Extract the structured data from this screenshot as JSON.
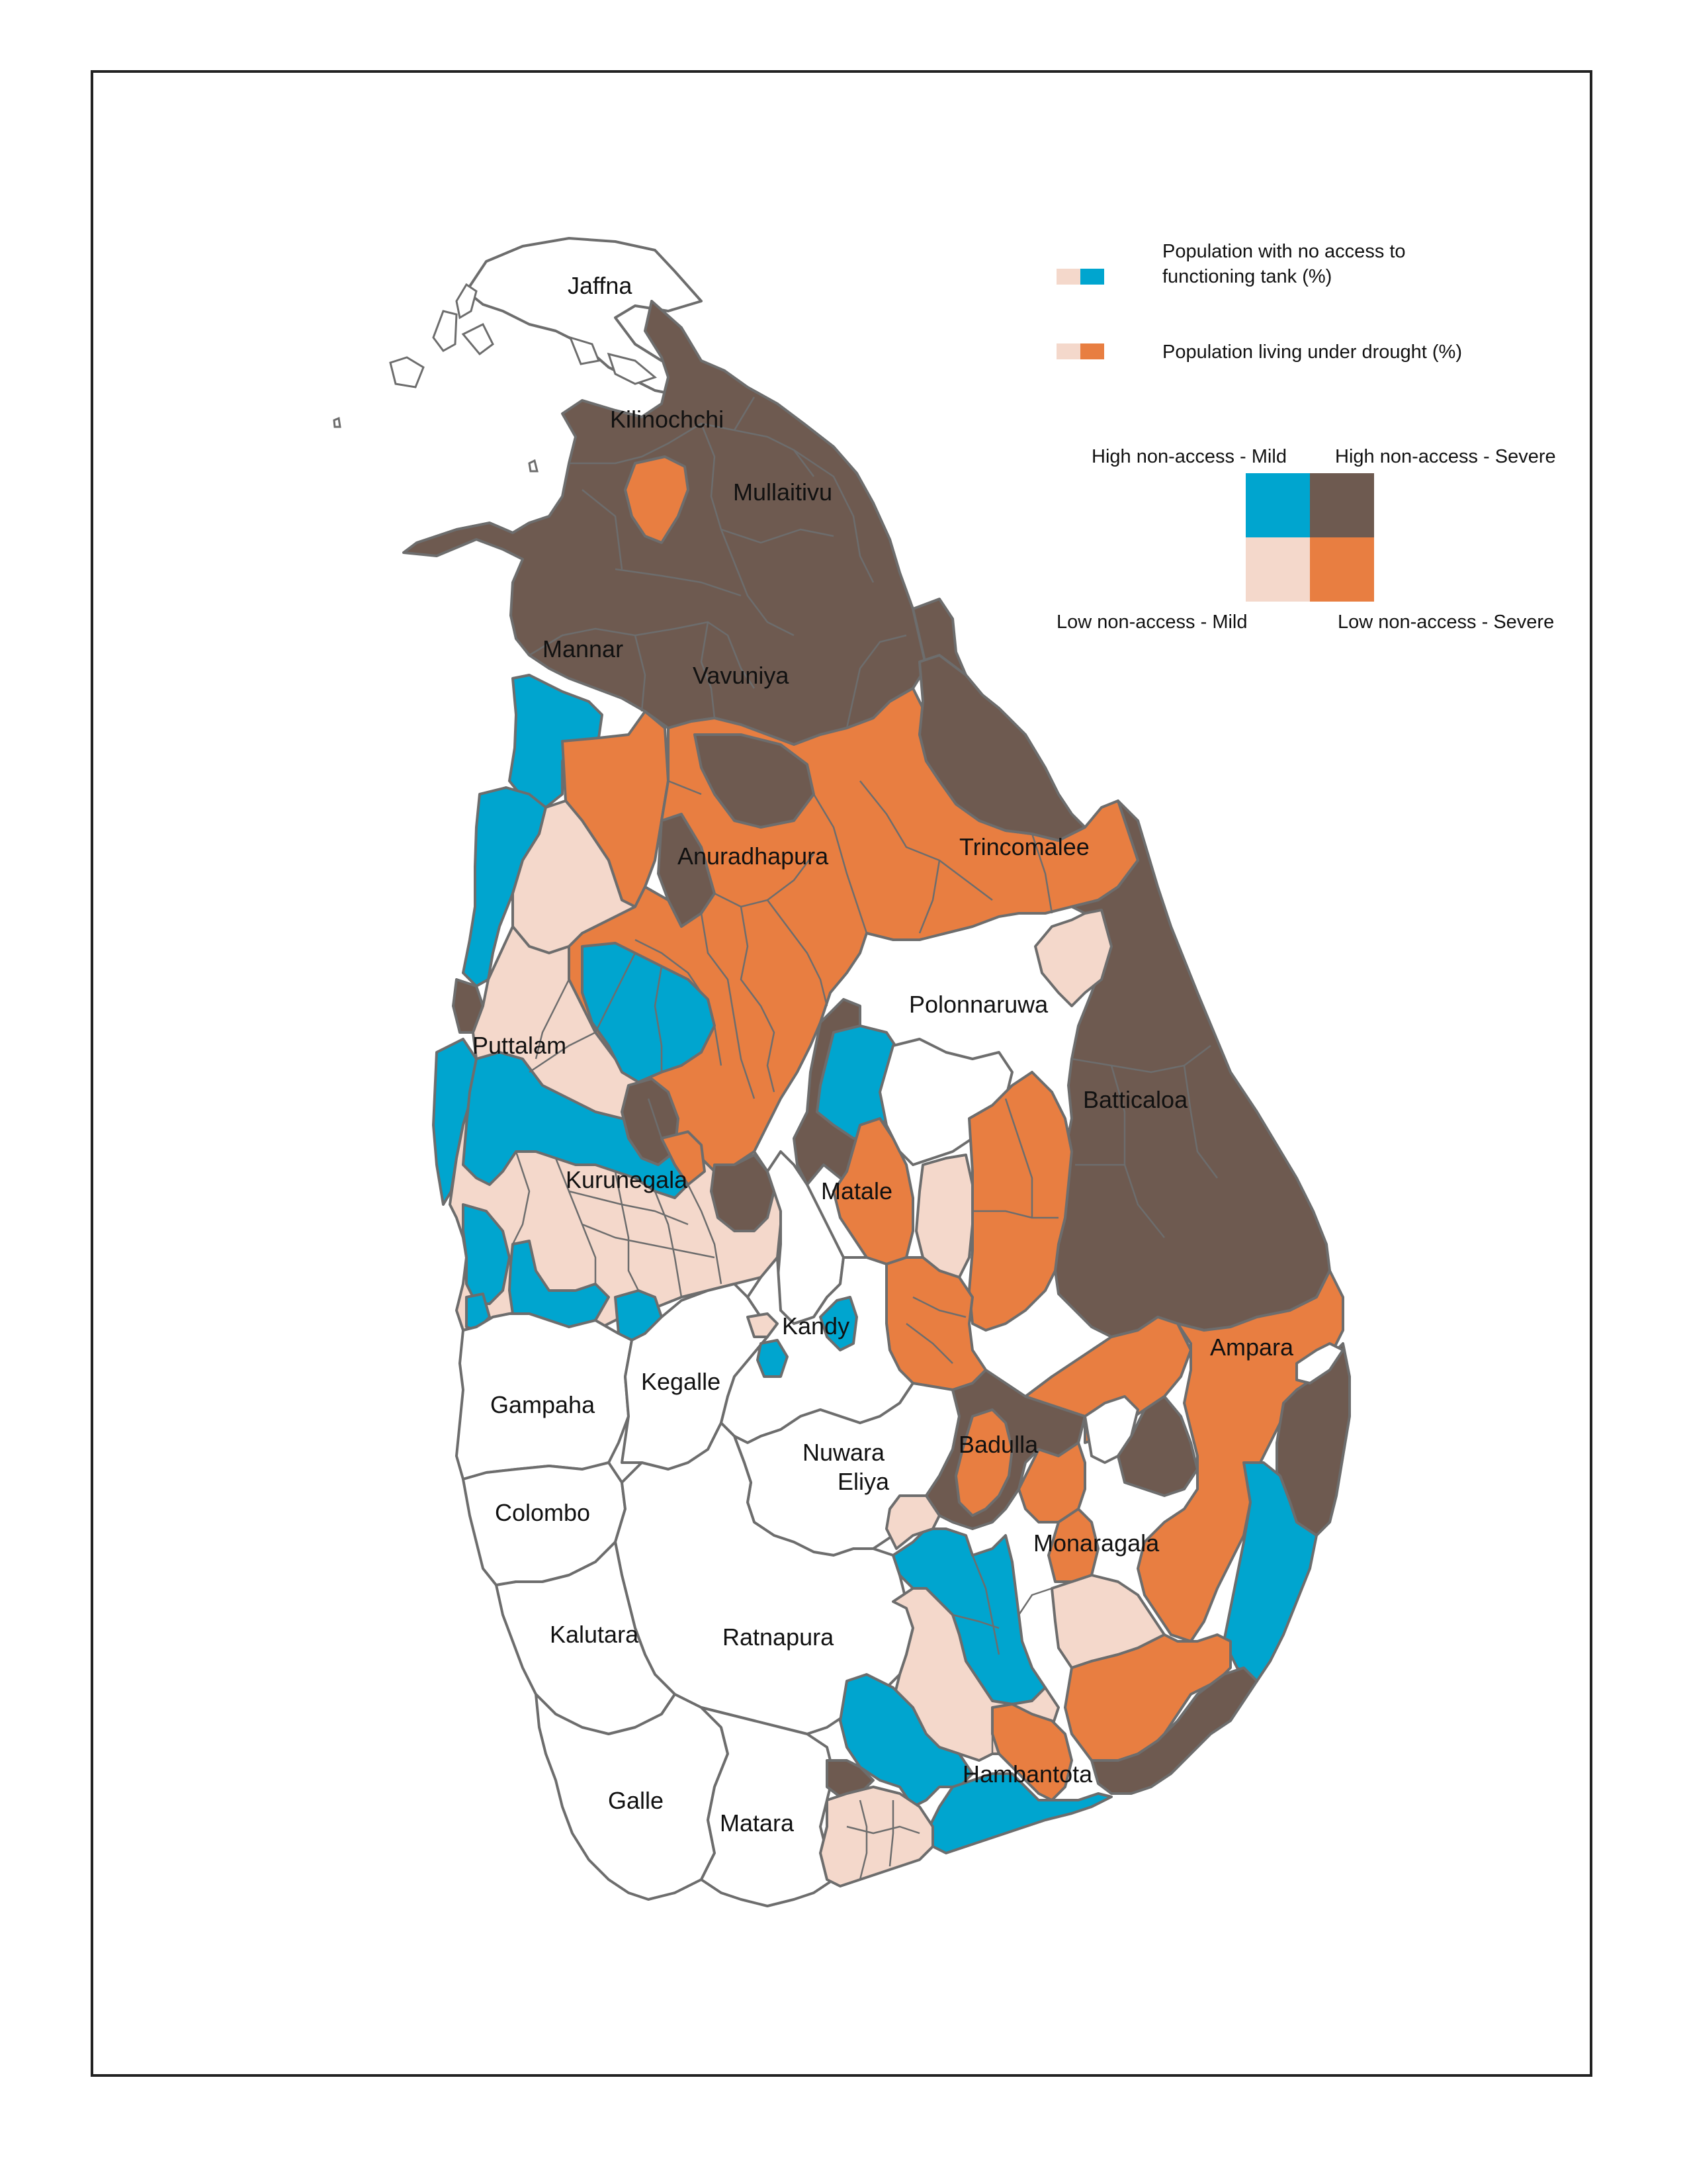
{
  "legend": {
    "tank_label_line1": "Population with no access to",
    "tank_label_line2": "functioning tank (%)",
    "drought_label": "Population living under drought (%)",
    "ramp_colors": {
      "tank": [
        "#f4d8cb",
        "#00a5cf"
      ],
      "drought": [
        "#f4d8cb",
        "#e87e41"
      ]
    },
    "matrix": {
      "top_left": "High non-access - Mild",
      "top_right": "High non-access - Severe",
      "bottom_left": "Low non-access - Mild",
      "bottom_right": "Low non-access - Severe"
    },
    "matrix_colors": {
      "high_mild": "#00a5cf",
      "high_severe": "#6e5a50",
      "low_mild": "#f4d8cb",
      "low_severe": "#e87e41"
    }
  },
  "colors": {
    "no_data": "#ffffff",
    "boundary": "#6d6d6d"
  },
  "districts": {
    "jaffna": "Jaffna",
    "kilinochchi": "Kilinochchi",
    "mullaitivu": "Mullaitivu",
    "mannar": "Mannar",
    "vavuniya": "Vavuniya",
    "anuradhapura": "Anuradhapura",
    "trincomalee": "Trincomalee",
    "puttalam": "Puttalam",
    "polonnaruwa": "Polonnaruwa",
    "batticaloa": "Batticaloa",
    "kurunegala": "Kurunegala",
    "matale": "Matale",
    "kandy": "Kandy",
    "ampara": "Ampara",
    "gampaha": "Gampaha",
    "kegalle": "Kegalle",
    "nuwara_eliya_1": "Nuwara",
    "nuwara_eliya_2": "Eliya",
    "badulla": "Badulla",
    "colombo": "Colombo",
    "monaragala": "Monaragala",
    "kalutara": "Kalutara",
    "ratnapura": "Ratnapura",
    "hambantota": "Hambantota",
    "galle": "Galle",
    "matara": "Matara"
  }
}
